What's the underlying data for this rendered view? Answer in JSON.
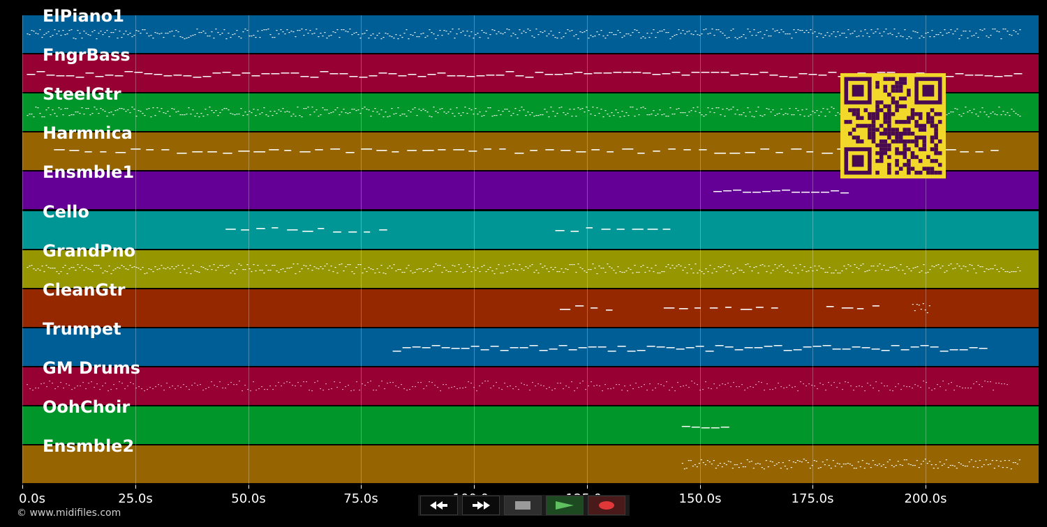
{
  "tracks": [
    {
      "name": "ElPiano1",
      "color": "#005e96"
    },
    {
      "name": "FngrBass",
      "color": "#960032"
    },
    {
      "name": "SteelGtr",
      "color": "#00962a"
    },
    {
      "name": "Harmnica",
      "color": "#966400"
    },
    {
      "name": "Ensmble1",
      "color": "#640096"
    },
    {
      "name": "Cello",
      "color": "#009696"
    },
    {
      "name": "GrandPno",
      "color": "#969600"
    },
    {
      "name": "CleanGtr",
      "color": "#962800"
    },
    {
      "name": "Trumpet",
      "color": "#005e96"
    },
    {
      "name": "GM Drums",
      "color": "#960032"
    },
    {
      "name": "OohChoir",
      "color": "#00962a"
    },
    {
      "name": "Ensmble2",
      "color": "#966400"
    }
  ],
  "time_axis": {
    "ticks": [
      "0.0s",
      "25.0s",
      "50.0s",
      "75.0s",
      "100.0s",
      "125.0s",
      "150.0s",
      "175.0s",
      "200.0s"
    ],
    "tick_values": [
      0,
      25,
      50,
      75,
      100,
      125,
      150,
      175,
      200
    ],
    "range": [
      0,
      225
    ]
  },
  "copyright": "© www.midifiles.com",
  "transport": {
    "rewind_icon": "rewind-icon",
    "forward_icon": "fast-forward-icon",
    "stop_icon": "stop-icon",
    "play_icon": "play-icon",
    "record_icon": "record-icon",
    "play_color": "#5fc05f",
    "record_color": "#e03838"
  },
  "qr_colors": {
    "light": "#f2d82a",
    "dark": "#4a0a52"
  }
}
